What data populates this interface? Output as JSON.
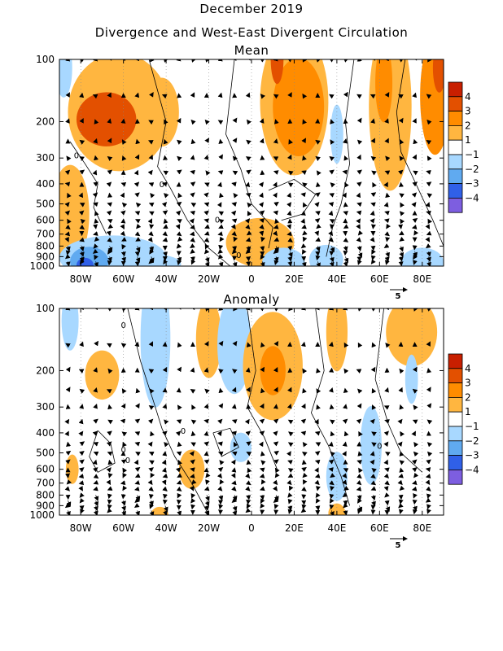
{
  "header": {
    "title": "December 2019",
    "subtitle": "Divergence and West-East Divergent Circulation"
  },
  "colors": {
    "pos": [
      "#ffffff",
      "#ffb640",
      "#ff8c00",
      "#e35000",
      "#c81f00"
    ],
    "neg": [
      "#ffffff",
      "#a8d8ff",
      "#60aaf0",
      "#3060e8",
      "#7d5ee0"
    ]
  },
  "reference_vector": {
    "label": "5"
  },
  "colorbar": {
    "labels": [
      "4",
      "3",
      "2",
      "1",
      "−1",
      "−2",
      "−3",
      "−4"
    ]
  },
  "chart_data": [
    {
      "type": "heatmap",
      "title": "Mean",
      "x_ticks": [
        "80W",
        "60W",
        "40W",
        "20W",
        "0",
        "20E",
        "40E",
        "60E",
        "80E"
      ],
      "x_tick_values": [
        -80,
        -60,
        -40,
        -20,
        0,
        20,
        40,
        60,
        80
      ],
      "y_ticks": [
        "100",
        "200",
        "300",
        "400",
        "500",
        "600",
        "700",
        "800",
        "900",
        "1000"
      ],
      "y_tick_values": [
        100,
        200,
        300,
        400,
        500,
        600,
        700,
        800,
        900,
        1000
      ],
      "xlim": [
        -90,
        90
      ],
      "ylim": [
        1000,
        100
      ],
      "y_scale": "log",
      "contour_labels": [
        "0",
        "0",
        "0",
        "0"
      ],
      "blobs": [
        {
          "lon": -68,
          "p": 195,
          "rx": 14,
          "ry": 0.55,
          "level": 3
        },
        {
          "lon": -62,
          "p": 180,
          "rx": 24,
          "ry": 1.2,
          "level": 1
        },
        {
          "lon": -42,
          "p": 180,
          "rx": 8,
          "ry": 0.7,
          "level": 1
        },
        {
          "lon": -85,
          "p": 560,
          "rx": 9,
          "ry": 1.0,
          "level": 1
        },
        {
          "lon": -88,
          "p": 110,
          "rx": 4,
          "ry": 0.6,
          "level": -1
        },
        {
          "lon": 20,
          "p": 160,
          "rx": 16,
          "ry": 1.5,
          "level": 1
        },
        {
          "lon": 22,
          "p": 170,
          "rx": 12,
          "ry": 1.0,
          "level": 2
        },
        {
          "lon": 12,
          "p": 100,
          "rx": 3,
          "ry": 0.5,
          "level": 3
        },
        {
          "lon": 40,
          "p": 230,
          "rx": 3,
          "ry": 0.6,
          "level": -1
        },
        {
          "lon": 65,
          "p": 170,
          "rx": 10,
          "ry": 1.7,
          "level": 1
        },
        {
          "lon": 62,
          "p": 130,
          "rx": 4,
          "ry": 0.8,
          "level": 2
        },
        {
          "lon": 86,
          "p": 150,
          "rx": 7,
          "ry": 1.2,
          "level": 2
        },
        {
          "lon": 88,
          "p": 110,
          "rx": 3,
          "ry": 0.5,
          "level": 3
        },
        {
          "lon": 4,
          "p": 770,
          "rx": 16,
          "ry": 0.5,
          "level": 1
        },
        {
          "lon": -65,
          "p": 910,
          "rx": 25,
          "ry": 0.45,
          "level": -1
        },
        {
          "lon": -76,
          "p": 950,
          "rx": 9,
          "ry": 0.3,
          "level": -2
        },
        {
          "lon": -78,
          "p": 990,
          "rx": 4,
          "ry": 0.15,
          "level": -3
        },
        {
          "lon": -45,
          "p": 980,
          "rx": 12,
          "ry": 0.2,
          "level": -1
        },
        {
          "lon": 15,
          "p": 960,
          "rx": 10,
          "ry": 0.3,
          "level": -1
        },
        {
          "lon": 35,
          "p": 930,
          "rx": 8,
          "ry": 0.3,
          "level": -1
        },
        {
          "lon": 80,
          "p": 960,
          "rx": 10,
          "ry": 0.3,
          "level": -1
        }
      ]
    },
    {
      "type": "heatmap",
      "title": "Anomaly",
      "x_ticks": [
        "80W",
        "60W",
        "40W",
        "20W",
        "0",
        "20E",
        "40E",
        "60E",
        "80E"
      ],
      "x_tick_values": [
        -80,
        -60,
        -40,
        -20,
        0,
        20,
        40,
        60,
        80
      ],
      "y_ticks": [
        "100",
        "200",
        "300",
        "400",
        "500",
        "600",
        "700",
        "800",
        "900",
        "1000"
      ],
      "y_tick_values": [
        100,
        200,
        300,
        400,
        500,
        600,
        700,
        800,
        900,
        1000
      ],
      "xlim": [
        -90,
        90
      ],
      "ylim": [
        1000,
        100
      ],
      "y_scale": "log",
      "contour_labels": [
        "0",
        "0",
        "0",
        "0",
        "0"
      ],
      "blobs": [
        {
          "lon": -85,
          "p": 115,
          "rx": 4,
          "ry": 0.6,
          "level": -1
        },
        {
          "lon": -45,
          "p": 140,
          "rx": 7,
          "ry": 1.4,
          "level": -1
        },
        {
          "lon": -20,
          "p": 140,
          "rx": 6,
          "ry": 0.8,
          "level": 1
        },
        {
          "lon": -8,
          "p": 150,
          "rx": 8,
          "ry": 1.0,
          "level": -1
        },
        {
          "lon": 10,
          "p": 190,
          "rx": 14,
          "ry": 1.1,
          "level": 1
        },
        {
          "lon": 10,
          "p": 200,
          "rx": 6,
          "ry": 0.5,
          "level": 2
        },
        {
          "lon": -70,
          "p": 210,
          "rx": 8,
          "ry": 0.5,
          "level": 1
        },
        {
          "lon": 40,
          "p": 130,
          "rx": 5,
          "ry": 0.8,
          "level": 1
        },
        {
          "lon": 75,
          "p": 130,
          "rx": 12,
          "ry": 0.7,
          "level": 1
        },
        {
          "lon": 75,
          "p": 220,
          "rx": 3,
          "ry": 0.5,
          "level": -1
        },
        {
          "lon": -28,
          "p": 600,
          "rx": 6,
          "ry": 0.4,
          "level": 1
        },
        {
          "lon": -84,
          "p": 600,
          "rx": 3,
          "ry": 0.3,
          "level": 1
        },
        {
          "lon": -5,
          "p": 470,
          "rx": 5,
          "ry": 0.3,
          "level": -1
        },
        {
          "lon": 56,
          "p": 460,
          "rx": 5,
          "ry": 0.8,
          "level": -1
        },
        {
          "lon": 40,
          "p": 650,
          "rx": 5,
          "ry": 0.5,
          "level": -1
        },
        {
          "lon": 40,
          "p": 980,
          "rx": 4,
          "ry": 0.2,
          "level": 1
        },
        {
          "lon": -43,
          "p": 990,
          "rx": 4,
          "ry": 0.15,
          "level": 1
        }
      ]
    }
  ]
}
